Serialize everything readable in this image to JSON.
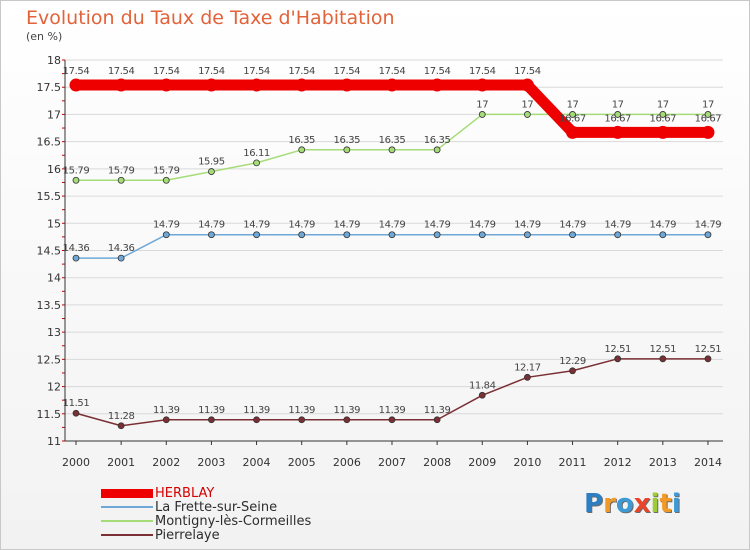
{
  "header": {
    "title": "Evolution du Taux de Taxe d'Habitation",
    "unit": "(en %)"
  },
  "brand": {
    "name": "Proxiti",
    "letters": [
      "P",
      "r",
      "o",
      "x",
      "i",
      "t",
      "i"
    ],
    "letter_colors": [
      "#2e7fc1",
      "#f29a26",
      "#3e9ad6",
      "#e9452b",
      "#9fcb3a",
      "#f29a26",
      "#3e9ad6"
    ]
  },
  "chart_data": {
    "type": "line",
    "title": "Evolution du Taux de Taxe d'Habitation",
    "ylabel": "(en %)",
    "xlabel": "",
    "x": [
      2000,
      2001,
      2002,
      2003,
      2004,
      2005,
      2006,
      2007,
      2008,
      2009,
      2010,
      2011,
      2012,
      2013,
      2014
    ],
    "ylim": [
      11,
      18
    ],
    "y_ticks": [
      "11",
      "11.5",
      "12",
      "12.5",
      "13",
      "13.5",
      "14",
      "14.5",
      "15",
      "15.5",
      "16",
      "16.5",
      "17",
      "17.5",
      "18"
    ],
    "grid": "horizontal",
    "legend_position": "bottom-left",
    "series": [
      {
        "name": "HERBLAY",
        "color": "#ee0000",
        "emphasis": true,
        "values": [
          17.54,
          17.54,
          17.54,
          17.54,
          17.54,
          17.54,
          17.54,
          17.54,
          17.54,
          17.54,
          17.54,
          16.67,
          16.67,
          16.67,
          16.67
        ],
        "labels": [
          "17.54",
          "17.54",
          "17.54",
          "17.54",
          "17.54",
          "17.54",
          "17.54",
          "17.54",
          "17.54",
          "17.54",
          "17.54",
          "16.67",
          "16.67",
          "16.67",
          "16.67"
        ]
      },
      {
        "name": "La Frette-sur-Seine",
        "color": "#6fa8d6",
        "values": [
          14.36,
          14.36,
          14.79,
          14.79,
          14.79,
          14.79,
          14.79,
          14.79,
          14.79,
          14.79,
          14.79,
          14.79,
          14.79,
          14.79,
          14.79
        ],
        "labels": [
          "14.36",
          "14.36",
          "14.79",
          "14.79",
          "14.79",
          "14.79",
          "14.79",
          "14.79",
          "14.79",
          "14.79",
          "14.79",
          "14.79",
          "14.79",
          "14.79",
          "14.79"
        ]
      },
      {
        "name": "Montigny-lès-Cormeilles",
        "color": "#a6dc78",
        "values": [
          15.79,
          15.79,
          15.79,
          15.95,
          16.11,
          16.35,
          16.35,
          16.35,
          16.35,
          17,
          17,
          17,
          17,
          17,
          17
        ],
        "labels": [
          "15.79",
          "15.79",
          "15.79",
          "15.95",
          "16.11",
          "16.35",
          "16.35",
          "16.35",
          "16.35",
          "17",
          "17",
          "17",
          "17",
          "17",
          "17"
        ]
      },
      {
        "name": "Pierrelaye",
        "color": "#7a2f34",
        "values": [
          11.51,
          11.28,
          11.39,
          11.39,
          11.39,
          11.39,
          11.39,
          11.39,
          11.39,
          11.84,
          12.17,
          12.29,
          12.51,
          12.51,
          12.51
        ],
        "labels": [
          "11.51",
          "11.28",
          "11.39",
          "11.39",
          "11.39",
          "11.39",
          "11.39",
          "11.39",
          "11.39",
          "11.84",
          "12.17",
          "12.29",
          "12.51",
          "12.51",
          "12.51"
        ]
      }
    ]
  }
}
